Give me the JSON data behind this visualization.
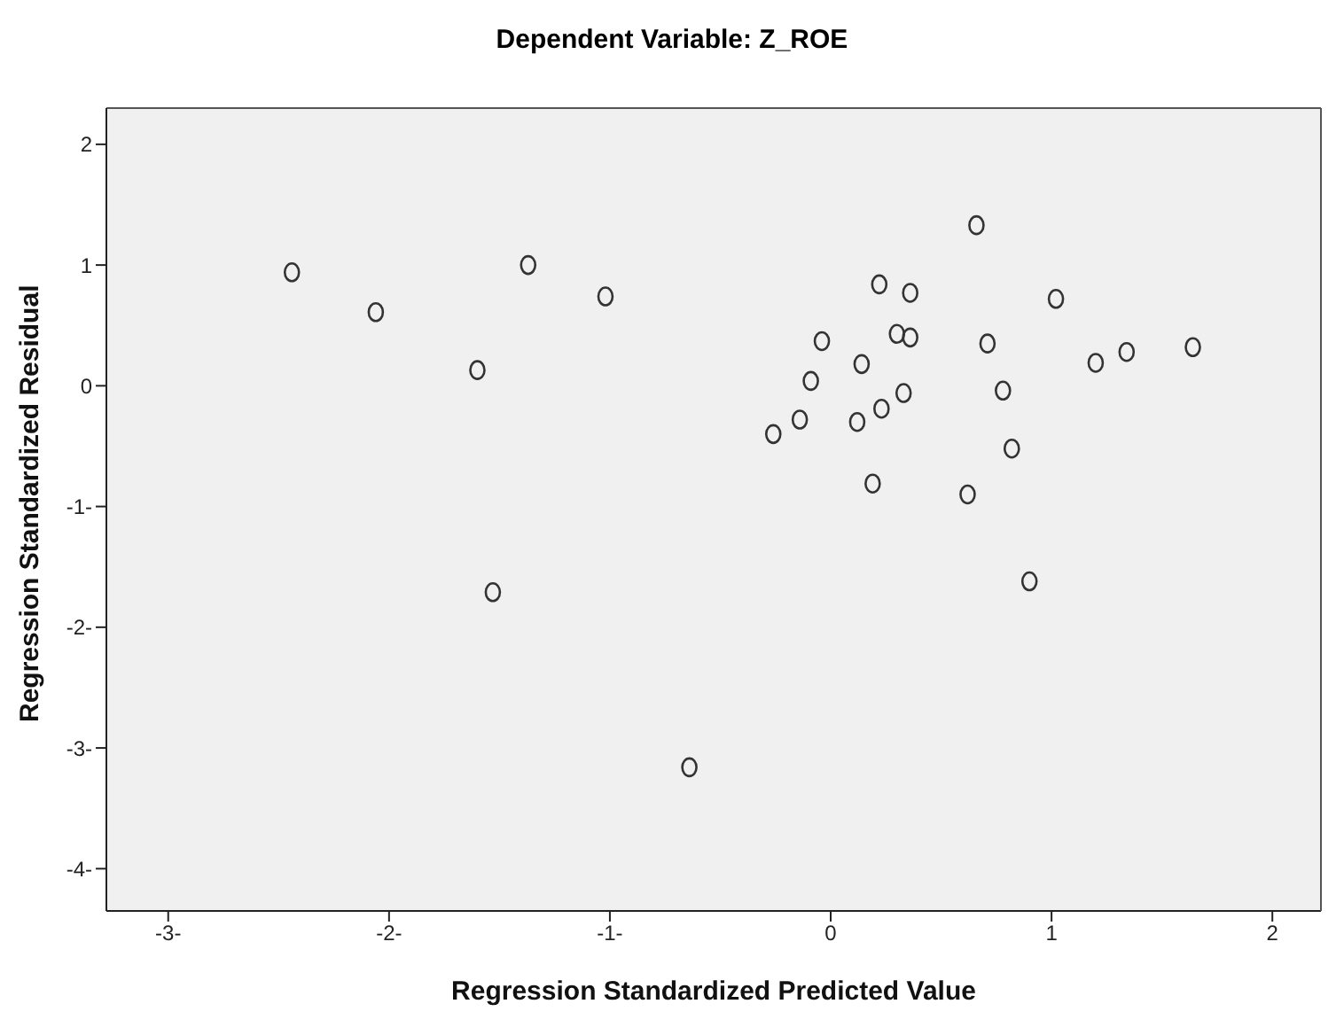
{
  "chart_data": {
    "type": "scatter",
    "title": "Dependent Variable: Z_ROE",
    "xlabel": "Regression Standardized Predicted Value",
    "ylabel": "Regression Standardized Residual",
    "x": [
      -2.44,
      -2.06,
      -1.6,
      -1.37,
      -1.02,
      -1.53,
      -0.64,
      0.66,
      0.22,
      0.36,
      1.02,
      -0.04,
      0.3,
      0.36,
      0.71,
      1.34,
      1.64,
      1.2,
      0.14,
      -0.09,
      0.33,
      0.78,
      0.23,
      0.12,
      -0.14,
      -0.26,
      0.82,
      0.19,
      0.62,
      0.9
    ],
    "series": [
      {
        "color": "#333333",
        "values": [
          0.94,
          0.61,
          0.13,
          1.0,
          0.74,
          -1.71,
          -3.16,
          1.33,
          0.84,
          0.77,
          0.72,
          0.37,
          0.43,
          0.4,
          0.35,
          0.28,
          0.32,
          0.19,
          0.18,
          0.04,
          -0.06,
          -0.04,
          -0.19,
          -0.3,
          -0.28,
          -0.4,
          -0.52,
          -0.81,
          -0.9,
          -1.62
        ]
      }
    ],
    "xlim": [
      -3.28,
      2.22
    ],
    "xticks": [
      {
        "value": -3,
        "label": "-3-"
      },
      {
        "value": -2,
        "label": "-2-"
      },
      {
        "value": -1,
        "label": "-1-"
      },
      0,
      1,
      2
    ],
    "ylim": [
      -4.35,
      2.3
    ],
    "yticks": [
      {
        "value": -4,
        "label": "-4-"
      },
      {
        "value": -3,
        "label": "-3-"
      },
      {
        "value": -2,
        "label": "-2-"
      },
      {
        "value": -1,
        "label": "-1-"
      },
      0,
      1,
      2
    ],
    "marker": "circle"
  }
}
